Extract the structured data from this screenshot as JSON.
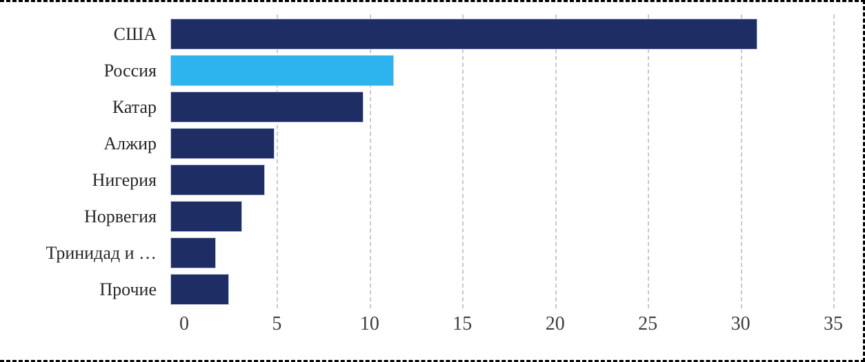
{
  "chart_data": {
    "type": "bar",
    "orientation": "horizontal",
    "title": "",
    "xlabel": "",
    "ylabel": "",
    "categories": [
      "США",
      "Россия",
      "Катар",
      "Алжир",
      "Нигерия",
      "Норвегия",
      "Тринидад и …",
      "Прочие"
    ],
    "values": [
      31,
      11.8,
      10.2,
      5.5,
      5.0,
      3.8,
      2.4,
      3.1
    ],
    "xlim": [
      0,
      35
    ],
    "x_ticks": [
      0,
      5,
      10,
      15,
      20,
      25,
      30,
      35
    ],
    "grid": "vertical-dashed",
    "legend": "none",
    "highlight_index": 1,
    "colors": {
      "bar_default": "#1e2d64",
      "bar_highlight": "#2db4ee",
      "gridline": "#c9c9c9",
      "category_label": "#262626",
      "tick_label": "#3d3d3d",
      "frame_border": "#000000"
    }
  }
}
